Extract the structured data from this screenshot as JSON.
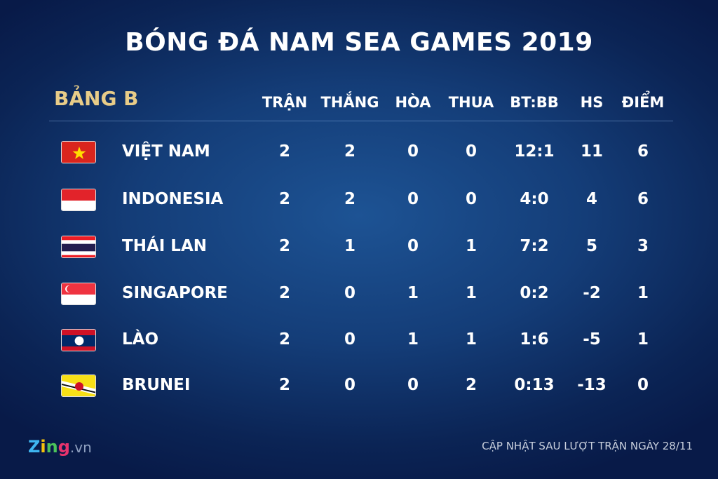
{
  "title": "BÓNG ĐÁ NAM SEA GAMES 2019",
  "group": "BẢNG B",
  "headers": [
    "TRẬN",
    "THẮNG",
    "HÒA",
    "THUA",
    "BT:BB",
    "HS",
    "ĐIỂM"
  ],
  "rows": [
    {
      "flag": "vietnam-flag",
      "team": "VIỆT NAM",
      "cells": [
        "2",
        "2",
        "0",
        "0",
        "12:1",
        "11",
        "6"
      ]
    },
    {
      "flag": "indonesia-flag",
      "team": "INDONESIA",
      "cells": [
        "2",
        "2",
        "0",
        "0",
        "4:0",
        "4",
        "6"
      ]
    },
    {
      "flag": "thailand-flag",
      "team": "THÁI LAN",
      "cells": [
        "2",
        "1",
        "0",
        "1",
        "7:2",
        "5",
        "3"
      ]
    },
    {
      "flag": "singapore-flag",
      "team": "SINGAPORE",
      "cells": [
        "2",
        "0",
        "1",
        "1",
        "0:2",
        "-2",
        "1"
      ]
    },
    {
      "flag": "laos-flag",
      "team": "LÀO",
      "cells": [
        "2",
        "0",
        "1",
        "1",
        "1:6",
        "-5",
        "1"
      ]
    },
    {
      "flag": "brunei-flag",
      "team": "BRUNEI",
      "cells": [
        "2",
        "0",
        "0",
        "2",
        "0:13",
        "-13",
        "0"
      ]
    }
  ],
  "footer": {
    "logo_text": "Zing",
    "logo_suffix": ".vn",
    "note": "CẬP NHẬT SAU LƯỢT TRẬN NGÀY 28/11"
  },
  "colors": {
    "group_label": "#e8cc88",
    "background": "#143d78"
  }
}
